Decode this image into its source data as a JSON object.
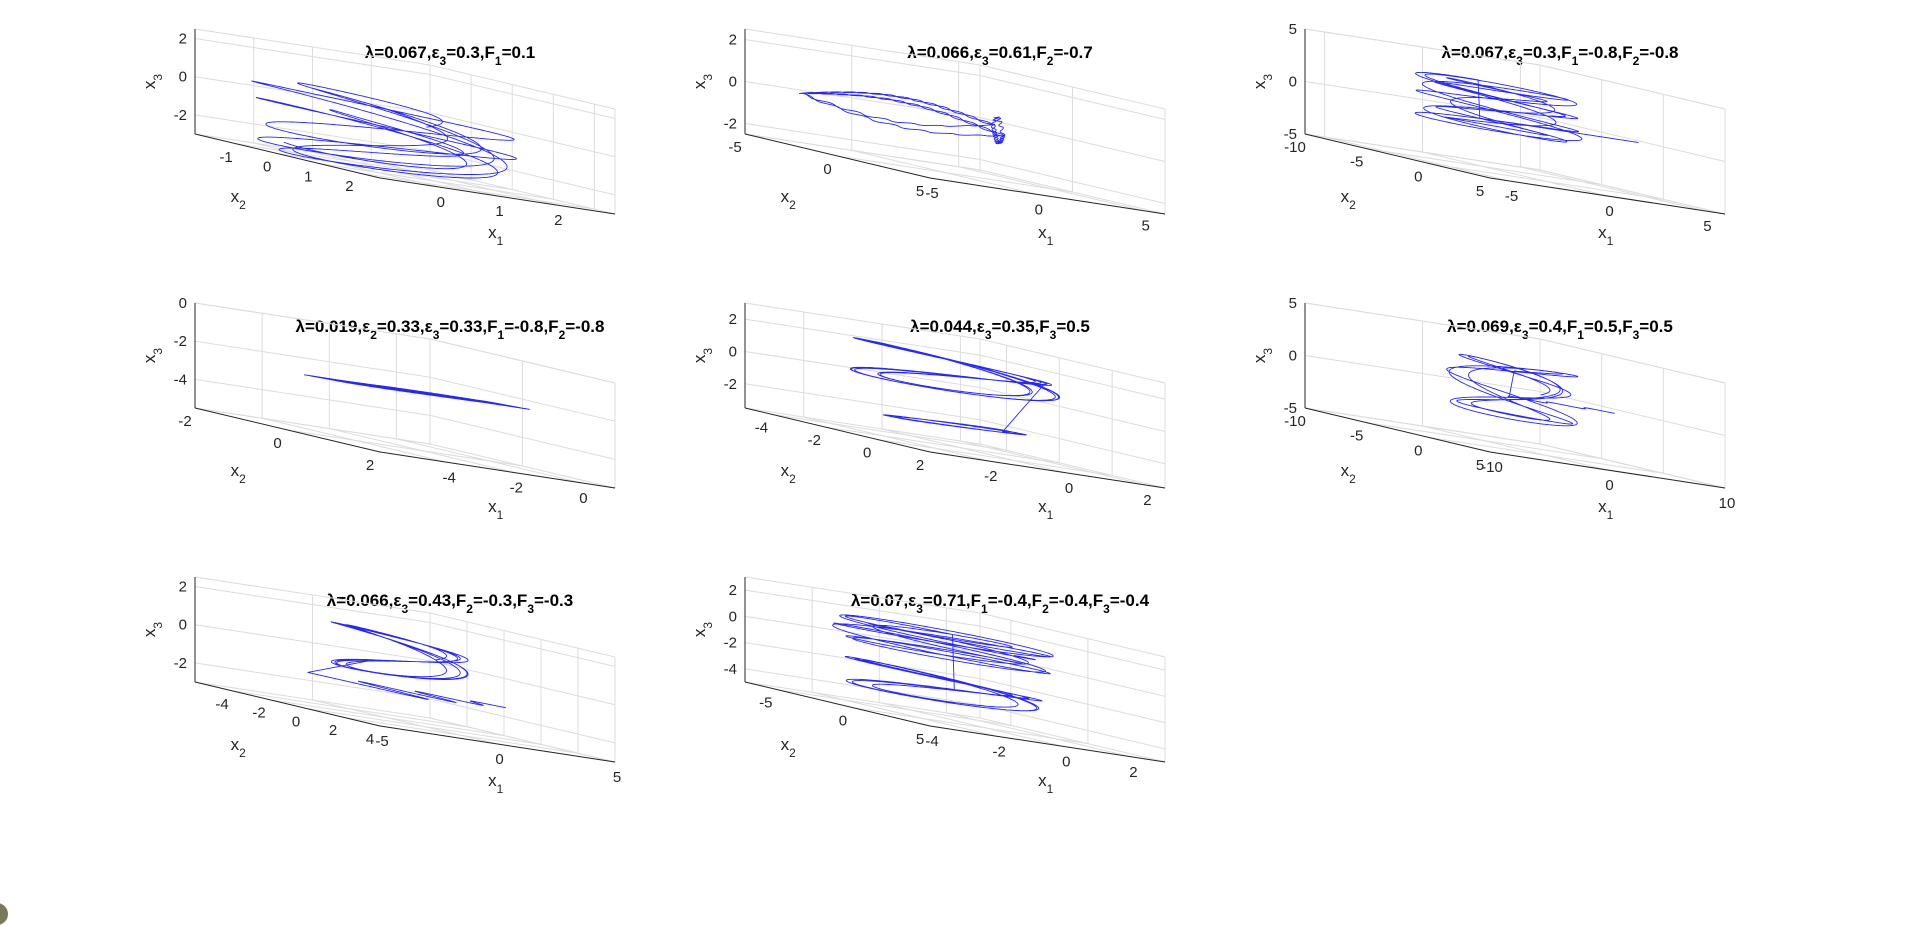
{
  "chart_data": [
    {
      "type": "line3d",
      "title": [
        [
          "λ=0.067,ε",
          "3",
          "=0.3,F",
          "1",
          "=0.1"
        ]
      ],
      "lambda": 0.067,
      "eps3": 0.3,
      "F1": 0.1,
      "xlim": [
        -1,
        3
      ],
      "ylim": [
        -2,
        2.5
      ],
      "zlim": [
        -3,
        2.5
      ],
      "xticks": [
        0,
        1,
        2
      ],
      "yticks": [
        -1,
        0,
        1,
        2
      ],
      "zticks": [
        -2,
        0,
        2
      ],
      "xtick_labels": [
        "0",
        "1",
        "2"
      ],
      "ytick_labels": [
        "-1",
        "0",
        "1",
        "2"
      ],
      "ztick_labels": [
        "-2",
        "0",
        "2"
      ],
      "xlabel": [
        "x",
        "1"
      ],
      "ylabel": [
        "x",
        "2"
      ],
      "zlabel": [
        "x",
        "3"
      ]
    },
    {
      "type": "line3d",
      "title": [
        [
          "λ=0.066,ε",
          "3",
          "=0.61,F",
          "2",
          "=-0.7"
        ]
      ],
      "lambda": 0.066,
      "eps3": 0.61,
      "F2": -0.7,
      "xlim": [
        -5,
        6
      ],
      "ylim": [
        -5,
        5
      ],
      "zlim": [
        -2.5,
        2.5
      ],
      "xticks": [
        -5,
        0,
        5
      ],
      "yticks": [
        -5,
        0,
        5
      ],
      "zticks": [
        -2,
        0,
        2
      ],
      "xtick_labels": [
        "-5",
        "0",
        "5"
      ],
      "ytick_labels": [
        "-5",
        "0",
        "5"
      ],
      "ztick_labels": [
        "-2",
        "0",
        "2"
      ],
      "xlabel": [
        "x",
        "1"
      ],
      "ylabel": [
        "x",
        "2"
      ],
      "zlabel": [
        "x",
        "3"
      ]
    },
    {
      "type": "line3d",
      "title": [
        [
          "λ=0.067,ε",
          "3",
          "=0.3,F",
          "1",
          "=-0.8,F",
          "2",
          "=-0.8"
        ]
      ],
      "lambda": 0.067,
      "eps3": 0.3,
      "F1": -0.8,
      "F2": -0.8,
      "xlim": [
        -6,
        6
      ],
      "ylim": [
        -10,
        5
      ],
      "zlim": [
        -5,
        5
      ],
      "xticks": [
        -5,
        0,
        5
      ],
      "yticks": [
        -10,
        -5,
        0,
        5
      ],
      "zticks": [
        -5,
        0,
        5
      ],
      "xtick_labels": [
        "-5",
        "0",
        "5"
      ],
      "ytick_labels": [
        "-10",
        "-5",
        "0",
        "5"
      ],
      "ztick_labels": [
        "-5",
        "0",
        "5"
      ],
      "xlabel": [
        "x",
        "1"
      ],
      "ylabel": [
        "x",
        "2"
      ],
      "zlabel": [
        "x",
        "3"
      ]
    },
    {
      "type": "line3d",
      "title": [
        [
          "λ=0.019,ε",
          "2",
          "=0.33,ε",
          "3",
          "=0.33,F",
          "1",
          "=-0.8,F",
          "2",
          "=-0.8"
        ]
      ],
      "lambda": 0.019,
      "eps2": 0.33,
      "eps3": 0.33,
      "F1": -0.8,
      "F2": -0.8,
      "xlim": [
        -6,
        1
      ],
      "ylim": [
        -2,
        2
      ],
      "zlim": [
        -5.5,
        0
      ],
      "xticks": [
        -4,
        -2,
        0
      ],
      "yticks": [
        -2,
        0,
        2
      ],
      "zticks": [
        -4,
        -2,
        0
      ],
      "xtick_labels": [
        "-4",
        "-2",
        "0"
      ],
      "ytick_labels": [
        "-2",
        "0",
        "2"
      ],
      "ztick_labels": [
        "-4",
        "-2",
        "0"
      ],
      "xlabel": [
        "x",
        "1"
      ],
      "ylabel": [
        "x",
        "2"
      ],
      "zlabel": [
        "x",
        "3"
      ]
    },
    {
      "type": "line3d",
      "title": [
        [
          "λ=0.044,ε",
          "3",
          "=0.35,F",
          "3",
          "=0.5"
        ]
      ],
      "lambda": 0.044,
      "eps3": 0.35,
      "F3": 0.5,
      "xlim": [
        -3.5,
        2.5
      ],
      "ylim": [
        -5,
        2
      ],
      "zlim": [
        -3.5,
        3
      ],
      "xticks": [
        -2,
        0,
        2
      ],
      "yticks": [
        -4,
        -2,
        0,
        2
      ],
      "zticks": [
        -2,
        0,
        2
      ],
      "xtick_labels": [
        "-2",
        "0",
        "2"
      ],
      "ytick_labels": [
        "-4",
        "-2",
        "0",
        "2"
      ],
      "ztick_labels": [
        "-2",
        "0",
        "2"
      ],
      "xlabel": [
        "x",
        "1"
      ],
      "ylabel": [
        "x",
        "2"
      ],
      "zlabel": [
        "x",
        "3"
      ]
    },
    {
      "type": "line3d",
      "title": [
        [
          "λ=0.069,ε",
          "3",
          "=0.4,F",
          "1",
          "=0.5,F",
          "3",
          "=0.5"
        ]
      ],
      "lambda": 0.069,
      "eps3": 0.4,
      "F1": 0.5,
      "F3": 0.5,
      "xlim": [
        -10,
        10
      ],
      "ylim": [
        -10,
        5
      ],
      "zlim": [
        -5,
        5
      ],
      "xticks": [
        -10,
        0,
        10
      ],
      "yticks": [
        -10,
        -5,
        0,
        5
      ],
      "zticks": [
        -5,
        0,
        5
      ],
      "xtick_labels": [
        "-10",
        "0",
        "10"
      ],
      "ytick_labels": [
        "-10",
        "-5",
        "0",
        "5"
      ],
      "ztick_labels": [
        "-5",
        "0",
        "5"
      ],
      "xlabel": [
        "x",
        "1"
      ],
      "ylabel": [
        "x",
        "2"
      ],
      "zlabel": [
        "x",
        "3"
      ]
    },
    {
      "type": "line3d",
      "title": [
        [
          "λ=0.066,ε",
          "3",
          "=0.43,F",
          "2",
          "=-0.3,F",
          "3",
          "=-0.3"
        ]
      ],
      "lambda": 0.066,
      "eps3": 0.43,
      "F2": -0.3,
      "F3": -0.3,
      "xlim": [
        -5,
        5
      ],
      "ylim": [
        -6,
        4
      ],
      "zlim": [
        -3,
        2.5
      ],
      "xticks": [
        -5,
        0,
        5
      ],
      "yticks": [
        -4,
        -2,
        0,
        2,
        4
      ],
      "zticks": [
        -2,
        0,
        2
      ],
      "xtick_labels": [
        "-5",
        "0",
        "5"
      ],
      "ytick_labels": [
        "-4",
        "-2",
        "0",
        "2",
        "4"
      ],
      "ztick_labels": [
        "-2",
        "0",
        "2"
      ],
      "xlabel": [
        "x",
        "1"
      ],
      "ylabel": [
        "x",
        "2"
      ],
      "zlabel": [
        "x",
        "3"
      ]
    },
    {
      "type": "line3d",
      "title": [
        [
          "λ=0.07,ε",
          "3",
          "=0.71,F",
          "1",
          "=-0.4,F",
          "2",
          "=-0.4,F",
          "3",
          "=-0.4"
        ]
      ],
      "lambda": 0.07,
      "eps3": 0.71,
      "F1": -0.4,
      "F2": -0.4,
      "F3": -0.4,
      "xlim": [
        -4,
        3
      ],
      "ylim": [
        -7,
        5
      ],
      "zlim": [
        -5,
        3
      ],
      "xticks": [
        -4,
        -2,
        0,
        2
      ],
      "yticks": [
        -5,
        0,
        5
      ],
      "zticks": [
        -4,
        -2,
        0,
        2
      ],
      "xtick_labels": [
        "-4",
        "-2",
        "0",
        "2"
      ],
      "ytick_labels": [
        "-5",
        "0",
        "5"
      ],
      "ztick_labels": [
        "-4",
        "-2",
        "0",
        "2"
      ],
      "xlabel": [
        "x",
        "1"
      ],
      "ylabel": [
        "x",
        "2"
      ],
      "zlabel": [
        "x",
        "3"
      ]
    }
  ],
  "colors": {
    "trajectory": "#0000ff",
    "grid": "#dcdcdc",
    "axis": "#262626"
  }
}
